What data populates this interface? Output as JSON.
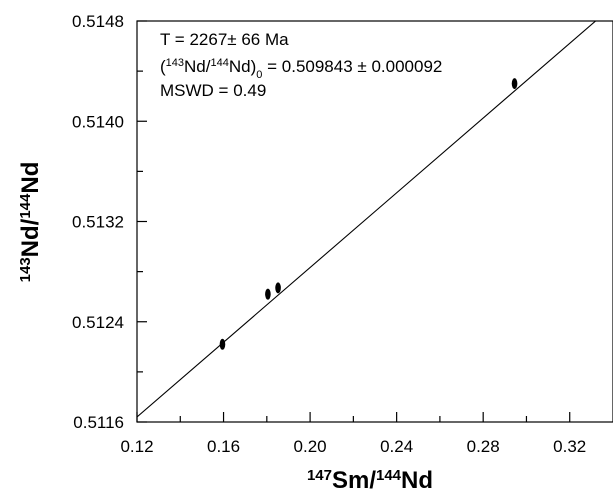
{
  "chart_data": {
    "type": "scatter",
    "title": "",
    "xlabel": {
      "parts": [
        {
          "text": "147",
          "sup": true
        },
        {
          "text": "Sm/",
          "sup": false
        },
        {
          "text": "144",
          "sup": true
        },
        {
          "text": "Nd",
          "sup": false
        }
      ]
    },
    "ylabel": {
      "parts": [
        {
          "text": "143",
          "sup": true
        },
        {
          "text": "Nd/",
          "sup": false
        },
        {
          "text": "144",
          "sup": true
        },
        {
          "text": "Nd",
          "sup": false
        }
      ]
    },
    "xlim": [
      0.12,
      0.34
    ],
    "ylim": [
      0.5116,
      0.5148
    ],
    "x_ticks": [
      0.12,
      0.16,
      0.2,
      0.24,
      0.28,
      0.32
    ],
    "x_tick_labels": [
      "0.12",
      "0.16",
      "0.20",
      "0.24",
      "0.28",
      "0.32"
    ],
    "x_minor_ticks": [
      0.14,
      0.18,
      0.22,
      0.26,
      0.3
    ],
    "y_ticks": [
      0.5116,
      0.5124,
      0.5132,
      0.514,
      0.5148
    ],
    "y_tick_labels": [
      "0.5116",
      "0.5124",
      "0.5132",
      "0.5140",
      "0.5148"
    ],
    "y_minor_ticks": [
      0.512,
      0.5128,
      0.5136,
      0.5144
    ],
    "grid": false,
    "points": [
      {
        "x": 0.1595,
        "y": 0.51222
      },
      {
        "x": 0.1805,
        "y": 0.51262
      },
      {
        "x": 0.1852,
        "y": 0.51267
      },
      {
        "x": 0.2945,
        "y": 0.5143
      }
    ],
    "isochron": {
      "intercept": 0.509843,
      "x_range": [
        0.12,
        0.34
      ],
      "y_at_x_min": 0.51164,
      "y_at_x_max": 0.51492
    },
    "annotations": {
      "line1": "T = 2267± 66 Ma",
      "line2": {
        "parts": [
          {
            "text": "(",
            "sup": false,
            "sub": false
          },
          {
            "text": "143",
            "sup": true,
            "sub": false
          },
          {
            "text": "Nd/",
            "sup": false,
            "sub": false
          },
          {
            "text": "144",
            "sup": true,
            "sub": false
          },
          {
            "text": "Nd)",
            "sup": false,
            "sub": false
          },
          {
            "text": "0",
            "sup": false,
            "sub": true
          },
          {
            "text": " = 0.509843 ±  0.000092",
            "sup": false,
            "sub": false
          }
        ]
      },
      "line3": "MSWD = 0.49"
    }
  }
}
